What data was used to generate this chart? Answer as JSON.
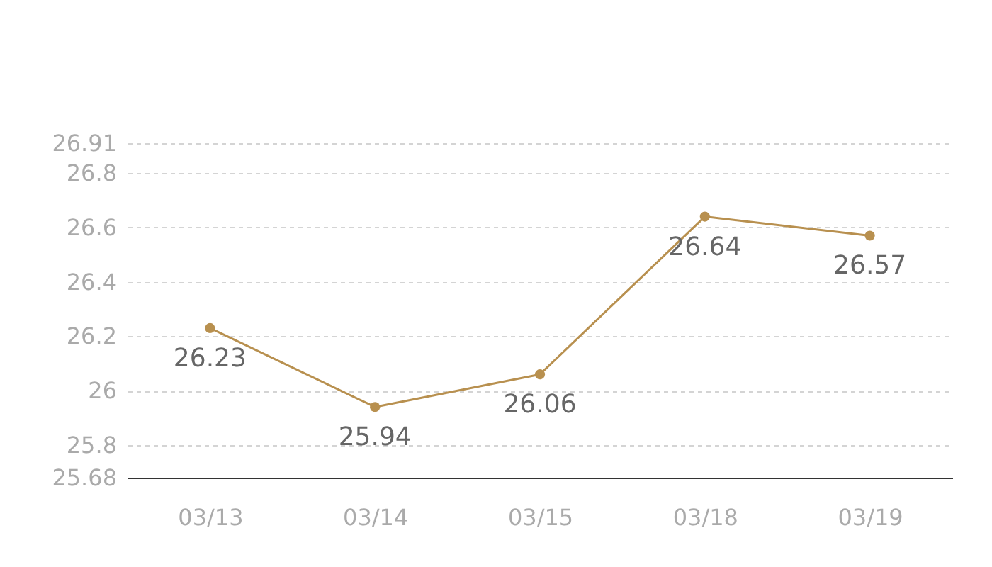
{
  "chart_data": {
    "type": "line",
    "categories": [
      "03/13",
      "03/14",
      "03/15",
      "03/18",
      "03/19"
    ],
    "series": [
      {
        "color": "#b8904f",
        "values": [
          26.23,
          25.94,
          26.06,
          26.64,
          26.57
        ]
      }
    ],
    "ylim": [
      25.68,
      26.91
    ],
    "yticks": [
      25.68,
      25.8,
      26,
      26.2,
      26.4,
      26.6,
      26.8,
      26.91
    ],
    "grid": "y",
    "marker": "circle",
    "line_style": "solid",
    "data_labels": true
  }
}
